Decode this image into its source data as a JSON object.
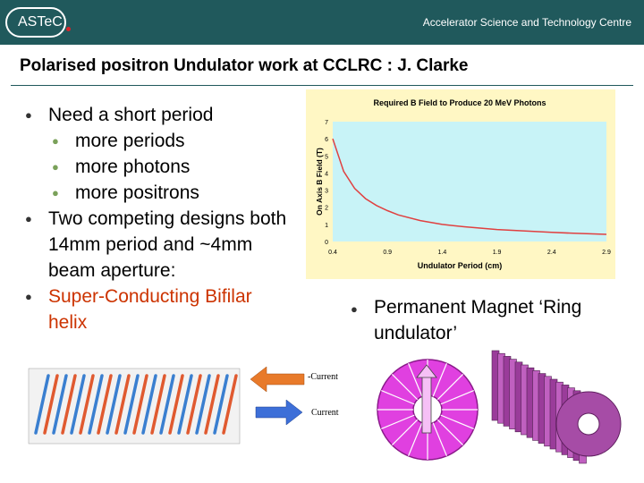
{
  "header": {
    "logo_text": "ASTeC",
    "centre_name": "Accelerator Science and Technology Centre"
  },
  "title": "Polarised positron Undulator work at CCLRC : J. Clarke",
  "left_bullets": {
    "b1": "Need a short period",
    "s1": "more periods",
    "s2": "more photons",
    "s3": "more positrons",
    "b2": "Two competing designs both 14mm period and ~4mm beam aperture:",
    "b3": "Super-Conducting Bifilar helix"
  },
  "right_bullet": "Permanent Magnet ‘Ring undulator’",
  "diagram_labels": {
    "neg_current": "-Current",
    "current": "Current"
  },
  "colors": {
    "header": "#20595c",
    "red": "#cc3300",
    "curve": "#e04040",
    "magenta": "#e040e0"
  },
  "chart_data": {
    "type": "line",
    "title": "Required B Field to Produce 20 MeV Photons",
    "xlabel": "Undulator Period (cm)",
    "ylabel": "On Axis B Field (T)",
    "x_ticks": [
      0.4,
      0.9,
      1.4,
      1.9,
      2.4,
      2.9
    ],
    "y_ticks": [
      0,
      1,
      2,
      3,
      4,
      5,
      6,
      7
    ],
    "xlim": [
      0.4,
      2.9
    ],
    "ylim": [
      0,
      7
    ],
    "series": [
      {
        "x": [
          0.4,
          0.5,
          0.6,
          0.7,
          0.8,
          0.9,
          1.0,
          1.2,
          1.4,
          1.6,
          1.9,
          2.2,
          2.4,
          2.6,
          2.9
        ],
        "values": [
          6.0,
          4.1,
          3.1,
          2.5,
          2.1,
          1.8,
          1.55,
          1.22,
          1.0,
          0.86,
          0.7,
          0.6,
          0.54,
          0.48,
          0.42
        ]
      }
    ]
  }
}
